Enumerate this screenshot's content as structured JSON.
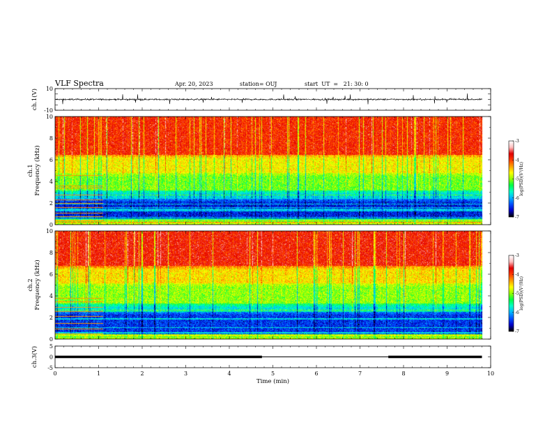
{
  "header": {
    "title": "VLF Spectra",
    "date": "Apr. 20, 2023",
    "station": "station= OUJ",
    "start": "start  UT  =   21: 30: 0"
  },
  "chart_data": [
    {
      "type": "line",
      "name": "ch1-waveform",
      "ylabel": "ch.1(V)",
      "ylim": [
        -10,
        10
      ],
      "yticks": [
        "10",
        "-10"
      ],
      "xlim": [
        0,
        10
      ],
      "data_span_min": [
        0,
        9.8
      ],
      "baseline_v": 0,
      "noise_amplitude_v": 1.5,
      "spike_amplitude_v": 5
    },
    {
      "type": "heatmap",
      "name": "ch1-spectrogram",
      "ylabel_line1": "ch.1",
      "ylabel_line2": "Frequency (kHz)",
      "ylim": [
        0,
        10
      ],
      "yticks": [
        "0",
        "2",
        "4",
        "6",
        "8",
        "10"
      ],
      "xlim": [
        0,
        10
      ],
      "data_span_min": [
        0,
        9.8
      ],
      "colorbar": {
        "label": "log(PSD)(V²/Hz)",
        "range": [
          -7,
          -3
        ],
        "ticks": [
          "-3",
          "-4",
          "-5",
          "-6",
          "-7"
        ]
      },
      "bands_khz": [
        {
          "from": 0,
          "to": 0.6,
          "level": -4.8
        },
        {
          "from": 0.6,
          "to": 2.4,
          "level": -6.8
        },
        {
          "from": 2.4,
          "to": 3.2,
          "level": -6.0
        },
        {
          "from": 3.2,
          "to": 4.8,
          "level": -5.1
        },
        {
          "from": 4.8,
          "to": 6.5,
          "level": -4.6
        },
        {
          "from": 6.5,
          "to": 10,
          "level": -3.7
        }
      ],
      "tone_lines_khz": [
        0.4,
        0.8,
        1.1,
        1.6,
        2.0,
        2.3,
        2.8,
        3.4,
        3.6,
        4.6
      ],
      "tone_lines_end_min": 1.1
    },
    {
      "type": "heatmap",
      "name": "ch2-spectrogram",
      "ylabel_line1": "ch.2",
      "ylabel_line2": "Frequency (kHz)",
      "ylim": [
        0,
        10
      ],
      "yticks": [
        "0",
        "2",
        "4",
        "6",
        "8",
        "10"
      ],
      "xlim": [
        0,
        10
      ],
      "data_span_min": [
        0,
        9.8
      ],
      "colorbar": {
        "label": "log(PSD)(V²/Hz)",
        "range": [
          -7,
          -3
        ],
        "ticks": [
          "-3",
          "-4",
          "-5",
          "-6",
          "-7"
        ]
      },
      "bands_khz": [
        {
          "from": 0,
          "to": 0.5,
          "level": -4.9
        },
        {
          "from": 0.5,
          "to": 2.6,
          "level": -6.7
        },
        {
          "from": 2.6,
          "to": 3.3,
          "level": -5.9
        },
        {
          "from": 3.3,
          "to": 5.2,
          "level": -5.0
        },
        {
          "from": 5.2,
          "to": 6.8,
          "level": -4.5
        },
        {
          "from": 6.8,
          "to": 10,
          "level": -3.6
        }
      ],
      "tone_lines_khz": [
        0.5,
        1.0,
        1.5,
        2.1,
        2.6,
        3.0,
        3.5,
        3.8
      ],
      "tone_lines_end_min": 1.1
    },
    {
      "type": "line",
      "name": "ch3-signal",
      "ylabel": "ch.3(V)",
      "ylim": [
        -5,
        5
      ],
      "yticks": [
        "5",
        "0",
        "-5"
      ],
      "xlim": [
        0,
        10
      ],
      "xlabel": "Time  (min)",
      "xticks": [
        "0",
        "1",
        "2",
        "3",
        "4",
        "5",
        "6",
        "7",
        "8",
        "9",
        "10"
      ],
      "segments": [
        {
          "x": [
            0,
            4.75
          ],
          "y": 0,
          "style": "thick"
        },
        {
          "x": [
            4.75,
            7.65
          ],
          "y": 0,
          "style": "thin"
        },
        {
          "x": [
            7.65,
            9.8
          ],
          "y": 0,
          "style": "thick"
        }
      ]
    }
  ],
  "colors": {
    "axis": "#000000",
    "colormap": [
      "#000000",
      "#0000c8",
      "#0050ff",
      "#00b4ff",
      "#00ffc8",
      "#00ff46",
      "#96ff00",
      "#ffff00",
      "#ffa000",
      "#ff3c00",
      "#e10000",
      "#ffbebe",
      "#ffffff"
    ]
  }
}
